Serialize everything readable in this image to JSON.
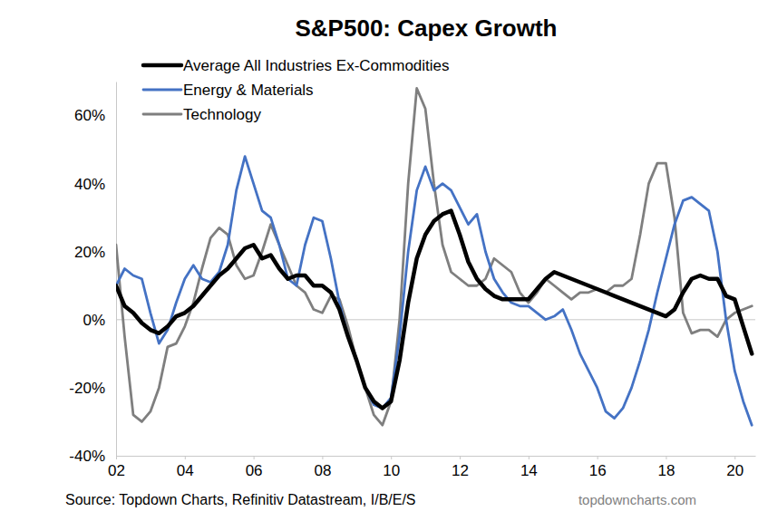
{
  "chart_data": {
    "type": "line",
    "title": "S&P500: Capex Growth",
    "annotations": [
      "Source: Topdown Charts, Refinitiv Datastream, I/B/E/S",
      "topdowncharts.com"
    ],
    "x": [
      2002,
      2002.25,
      2002.5,
      2002.75,
      2003,
      2003.25,
      2003.5,
      2003.75,
      2004,
      2004.25,
      2004.5,
      2004.75,
      2005,
      2005.25,
      2005.5,
      2005.75,
      2006,
      2006.25,
      2006.5,
      2006.75,
      2007,
      2007.25,
      2007.5,
      2007.75,
      2008,
      2008.25,
      2008.5,
      2008.75,
      2009,
      2009.25,
      2009.5,
      2009.75,
      2010,
      2010.25,
      2010.5,
      2010.75,
      2011,
      2011.25,
      2011.5,
      2011.75,
      2012,
      2012.25,
      2012.5,
      2012.75,
      2013,
      2013.25,
      2013.5,
      2013.75,
      2014,
      2014.25,
      2014.5,
      2014.75,
      2015,
      2015.25,
      2015.5,
      2015.75,
      2016,
      2016.25,
      2016.5,
      2016.75,
      2017,
      2017.25,
      2017.5,
      2017.75,
      2018,
      2018.25,
      2018.5,
      2018.75,
      2019,
      2019.25,
      2019.5,
      2019.75,
      2020,
      2020.25,
      2020.5
    ],
    "series": [
      {
        "name": "Average All Industries Ex-Commodities",
        "color": "#000000",
        "values": [
          10,
          4,
          2,
          -1,
          -3,
          -4,
          -2,
          1,
          2,
          4,
          7,
          10,
          13,
          15,
          18,
          21,
          22,
          18,
          19,
          15,
          12,
          13,
          13,
          10,
          10,
          8,
          3,
          -5,
          -12,
          -20,
          -24,
          -26,
          -24,
          -12,
          5,
          18,
          25,
          29,
          31,
          32,
          25,
          17,
          12,
          9,
          7,
          6,
          6,
          6,
          6,
          9,
          12,
          14,
          13,
          12,
          11,
          10,
          9,
          8,
          7,
          6,
          5,
          4,
          3,
          2,
          1,
          3,
          8,
          12,
          13,
          12,
          12,
          7,
          6,
          -2,
          -10
        ]
      },
      {
        "name": "Energy & Materials",
        "color": "#4472c4",
        "values": [
          10,
          15,
          13,
          12,
          2,
          -7,
          -3,
          5,
          12,
          16,
          12,
          11,
          14,
          22,
          38,
          48,
          40,
          32,
          30,
          22,
          12,
          10,
          22,
          30,
          29,
          18,
          5,
          -5,
          -12,
          -20,
          -25,
          -26,
          -23,
          -5,
          20,
          38,
          45,
          38,
          40,
          38,
          33,
          28,
          31,
          20,
          12,
          8,
          5,
          4,
          4,
          2,
          0,
          1,
          3,
          -3,
          -10,
          -15,
          -20,
          -27,
          -29,
          -26,
          -20,
          -12,
          -3,
          8,
          18,
          28,
          35,
          36,
          34,
          32,
          20,
          0,
          -15,
          -24,
          -31
        ]
      },
      {
        "name": "Technology",
        "color": "#7f7f7f",
        "values": [
          22,
          -5,
          -28,
          -30,
          -27,
          -20,
          -8,
          -7,
          -2,
          5,
          15,
          24,
          27,
          25,
          16,
          12,
          13,
          20,
          28,
          22,
          16,
          10,
          8,
          3,
          2,
          7,
          6,
          -2,
          -12,
          -20,
          -28,
          -31,
          -24,
          0,
          40,
          68,
          62,
          40,
          22,
          14,
          12,
          10,
          10,
          12,
          18,
          16,
          14,
          8,
          5,
          8,
          12,
          10,
          8,
          6,
          8,
          8,
          9,
          8,
          10,
          10,
          12,
          25,
          40,
          46,
          46,
          30,
          2,
          -4,
          -3,
          -3,
          -5,
          0,
          2,
          3,
          4
        ]
      }
    ],
    "xlim": [
      2002,
      2020.6
    ],
    "xticks": [
      {
        "value": 2002,
        "label": "02"
      },
      {
        "value": 2004,
        "label": "04"
      },
      {
        "value": 2006,
        "label": "06"
      },
      {
        "value": 2008,
        "label": "08"
      },
      {
        "value": 2010,
        "label": "10"
      },
      {
        "value": 2012,
        "label": "12"
      },
      {
        "value": 2014,
        "label": "14"
      },
      {
        "value": 2016,
        "label": "16"
      },
      {
        "value": 2018,
        "label": "18"
      },
      {
        "value": 2020,
        "label": "20"
      }
    ],
    "ylim": [
      -40,
      70
    ],
    "yticks": [
      {
        "value": -40,
        "label": "-40%"
      },
      {
        "value": -20,
        "label": "-20%"
      },
      {
        "value": 0,
        "label": "0%"
      },
      {
        "value": 20,
        "label": "20%"
      },
      {
        "value": 40,
        "label": "40%"
      },
      {
        "value": 60,
        "label": "60%"
      }
    ],
    "grid": false,
    "legend": "top-left"
  }
}
